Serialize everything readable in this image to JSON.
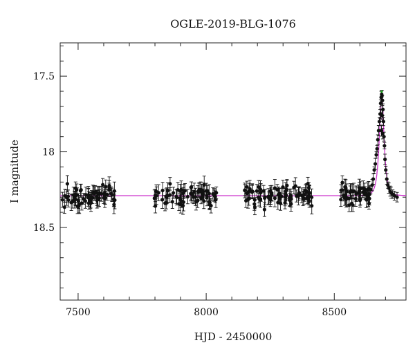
{
  "chart_data": {
    "type": "scatter",
    "title": "OGLE-2019-BLG-1076",
    "xlabel": "HJD - 2450000",
    "ylabel": "I magnitude",
    "xlim": [
      7430,
      8780
    ],
    "ylim": [
      18.98,
      17.28
    ],
    "y_inverted": true,
    "x_ticks": [
      7500,
      8000,
      8500
    ],
    "y_ticks": [
      17.5,
      18,
      18.5
    ],
    "grid": false,
    "colors": {
      "points": "#111111",
      "model": "#cc33cc",
      "peak_highlight": "#22aa22"
    },
    "series": [
      {
        "kind": "observations",
        "seasons": [
          {
            "start": 7438,
            "end": 7645,
            "count": 70
          },
          {
            "start": 7795,
            "end": 8040,
            "count": 70
          },
          {
            "start": 8150,
            "end": 8420,
            "count": 85
          },
          {
            "start": 8525,
            "end": 8640,
            "count": 45
          }
        ],
        "baseline_mag": 18.29,
        "event_points": [
          [
            8642,
            18.25
          ],
          [
            8648,
            18.22
          ],
          [
            8652,
            18.18
          ],
          [
            8656,
            18.12
          ],
          [
            8660,
            18.08
          ],
          [
            8664,
            18.02
          ],
          [
            8667,
            17.98
          ],
          [
            8670,
            17.92
          ],
          [
            8673,
            17.86
          ],
          [
            8676,
            17.8
          ],
          [
            8679,
            17.75
          ],
          [
            8681,
            17.68
          ],
          [
            8683,
            17.64
          ],
          [
            8685,
            17.62
          ],
          [
            8686,
            17.63
          ],
          [
            8688,
            17.66
          ],
          [
            8690,
            17.72
          ],
          [
            8692,
            17.8
          ],
          [
            8694,
            17.9
          ],
          [
            8696,
            17.96
          ],
          [
            8698,
            18.05
          ],
          [
            8701,
            18.12
          ],
          [
            8705,
            18.18
          ],
          [
            8709,
            18.22
          ],
          [
            8713,
            18.24
          ],
          [
            8718,
            18.26
          ],
          [
            8722,
            18.27
          ],
          [
            8728,
            18.28
          ],
          [
            8735,
            18.29
          ],
          [
            8745,
            18.3
          ],
          [
            8684,
            17.86
          ],
          [
            8687,
            17.76
          ],
          [
            8682,
            17.75
          ],
          [
            8689,
            17.88
          ]
        ]
      },
      {
        "kind": "model",
        "baseline_mag": 18.29,
        "peak_time": 8685,
        "peak_mag": 17.62,
        "tE": 14
      }
    ]
  }
}
